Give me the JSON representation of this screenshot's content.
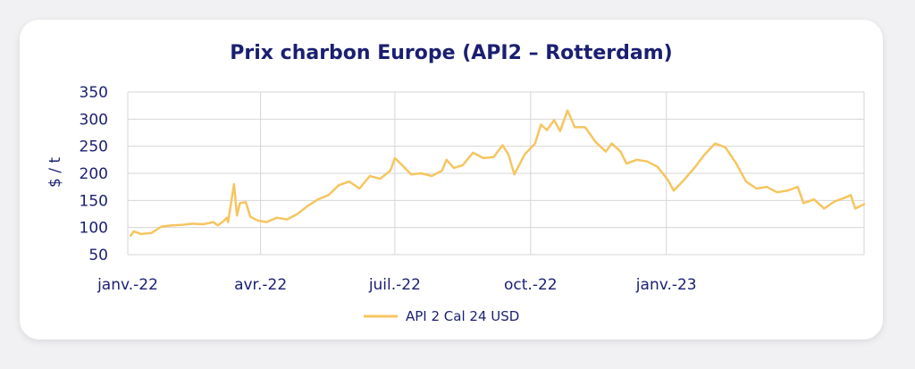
{
  "chart_data": {
    "type": "line",
    "title": "Prix charbon Europe (API2 – Rotterdam)",
    "ylabel": "$ / t",
    "xlabel": "",
    "ylim": [
      50,
      350
    ],
    "yticks": [
      50,
      100,
      150,
      200,
      250,
      300,
      350
    ],
    "xlim": [
      "2022-01-01",
      "2023-05-15"
    ],
    "xticks": [
      {
        "date": "2022-01-01",
        "label": "janv.-22"
      },
      {
        "date": "2022-04-01",
        "label": "avr.-22"
      },
      {
        "date": "2022-07-01",
        "label": "juil.-22"
      },
      {
        "date": "2022-10-01",
        "label": "oct.-22"
      },
      {
        "date": "2023-01-01",
        "label": "janv.-23"
      }
    ],
    "grid": true,
    "legend_position": "bottom",
    "colors": {
      "series": "#f6c560",
      "text": "#1a1f71",
      "grid": "#d6d6d6"
    },
    "series": [
      {
        "name": "API 2 Cal 24 USD",
        "points": [
          [
            "2022-01-03",
            85
          ],
          [
            "2022-01-05",
            93
          ],
          [
            "2022-01-10",
            88
          ],
          [
            "2022-01-17",
            90
          ],
          [
            "2022-01-24",
            102
          ],
          [
            "2022-01-31",
            104
          ],
          [
            "2022-02-07",
            105
          ],
          [
            "2022-02-14",
            107
          ],
          [
            "2022-02-21",
            106
          ],
          [
            "2022-02-28",
            110
          ],
          [
            "2022-03-03",
            104
          ],
          [
            "2022-03-07",
            112
          ],
          [
            "2022-03-09",
            118
          ],
          [
            "2022-03-10",
            110
          ],
          [
            "2022-03-14",
            180
          ],
          [
            "2022-03-16",
            122
          ],
          [
            "2022-03-18",
            145
          ],
          [
            "2022-03-22",
            147
          ],
          [
            "2022-03-25",
            120
          ],
          [
            "2022-03-30",
            113
          ],
          [
            "2022-04-05",
            110
          ],
          [
            "2022-04-12",
            118
          ],
          [
            "2022-04-19",
            115
          ],
          [
            "2022-04-26",
            125
          ],
          [
            "2022-05-03",
            140
          ],
          [
            "2022-05-10",
            152
          ],
          [
            "2022-05-17",
            160
          ],
          [
            "2022-05-24",
            178
          ],
          [
            "2022-05-31",
            185
          ],
          [
            "2022-06-07",
            172
          ],
          [
            "2022-06-14",
            195
          ],
          [
            "2022-06-21",
            190
          ],
          [
            "2022-06-28",
            205
          ],
          [
            "2022-07-01",
            228
          ],
          [
            "2022-07-06",
            215
          ],
          [
            "2022-07-12",
            198
          ],
          [
            "2022-07-19",
            200
          ],
          [
            "2022-07-26",
            195
          ],
          [
            "2022-08-02",
            205
          ],
          [
            "2022-08-05",
            225
          ],
          [
            "2022-08-10",
            210
          ],
          [
            "2022-08-16",
            215
          ],
          [
            "2022-08-23",
            238
          ],
          [
            "2022-08-30",
            228
          ],
          [
            "2022-09-06",
            230
          ],
          [
            "2022-09-12",
            252
          ],
          [
            "2022-09-16",
            235
          ],
          [
            "2022-09-20",
            198
          ],
          [
            "2022-09-27",
            235
          ],
          [
            "2022-10-04",
            255
          ],
          [
            "2022-10-08",
            290
          ],
          [
            "2022-10-12",
            280
          ],
          [
            "2022-10-17",
            298
          ],
          [
            "2022-10-21",
            278
          ],
          [
            "2022-10-26",
            316
          ],
          [
            "2022-10-31",
            285
          ],
          [
            "2022-11-07",
            285
          ],
          [
            "2022-11-14",
            258
          ],
          [
            "2022-11-21",
            240
          ],
          [
            "2022-11-25",
            255
          ],
          [
            "2022-12-01",
            240
          ],
          [
            "2022-12-05",
            218
          ],
          [
            "2022-12-12",
            225
          ],
          [
            "2022-12-19",
            222
          ],
          [
            "2022-12-26",
            212
          ],
          [
            "2023-01-02",
            188
          ],
          [
            "2023-01-06",
            168
          ],
          [
            "2023-01-13",
            188
          ],
          [
            "2023-01-20",
            210
          ],
          [
            "2023-01-27",
            235
          ],
          [
            "2023-02-03",
            255
          ],
          [
            "2023-02-10",
            248
          ],
          [
            "2023-02-17",
            220
          ],
          [
            "2023-02-24",
            185
          ],
          [
            "2023-03-03",
            172
          ],
          [
            "2023-03-10",
            175
          ],
          [
            "2023-03-17",
            165
          ],
          [
            "2023-03-24",
            168
          ],
          [
            "2023-03-31",
            175
          ],
          [
            "2023-04-04",
            145
          ],
          [
            "2023-04-11",
            152
          ],
          [
            "2023-04-18",
            135
          ],
          [
            "2023-04-25",
            148
          ],
          [
            "2023-05-02",
            155
          ],
          [
            "2023-05-06",
            160
          ],
          [
            "2023-05-09",
            135
          ],
          [
            "2023-05-15",
            143
          ]
        ]
      }
    ]
  }
}
